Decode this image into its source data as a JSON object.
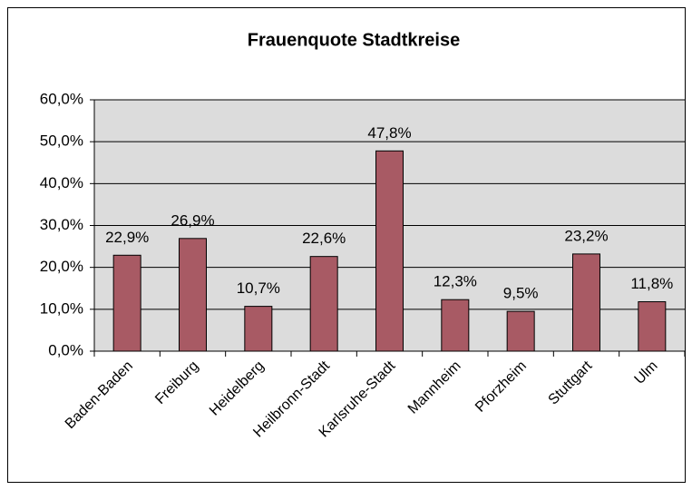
{
  "chart_data": {
    "type": "bar",
    "title": "Frauenquote Stadtkreise",
    "categories": [
      "Baden-Baden",
      "Freiburg",
      "Heidelberg",
      "Heilbronn-Stadt",
      "Karlsruhe-Stadt",
      "Mannheim",
      "Pforzheim",
      "Stuttgart",
      "Ulm"
    ],
    "values": [
      22.9,
      26.9,
      10.7,
      22.6,
      47.8,
      12.3,
      9.5,
      23.2,
      11.8
    ],
    "value_labels": [
      "22,9%",
      "26,9%",
      "10,7%",
      "22,6%",
      "47,8%",
      "12,3%",
      "9,5%",
      "23,2%",
      "11,8%"
    ],
    "color": "#a85a64",
    "ylim": [
      0,
      60
    ],
    "yticks": [
      {
        "value": 0,
        "label": "0,0%"
      },
      {
        "value": 10,
        "label": "10,0%"
      },
      {
        "value": 20,
        "label": "20,0%"
      },
      {
        "value": 30,
        "label": "30,0%"
      },
      {
        "value": 40,
        "label": "40,0%"
      },
      {
        "value": 50,
        "label": "50,0%"
      },
      {
        "value": 60,
        "label": "60,0%"
      }
    ],
    "grid": true
  }
}
